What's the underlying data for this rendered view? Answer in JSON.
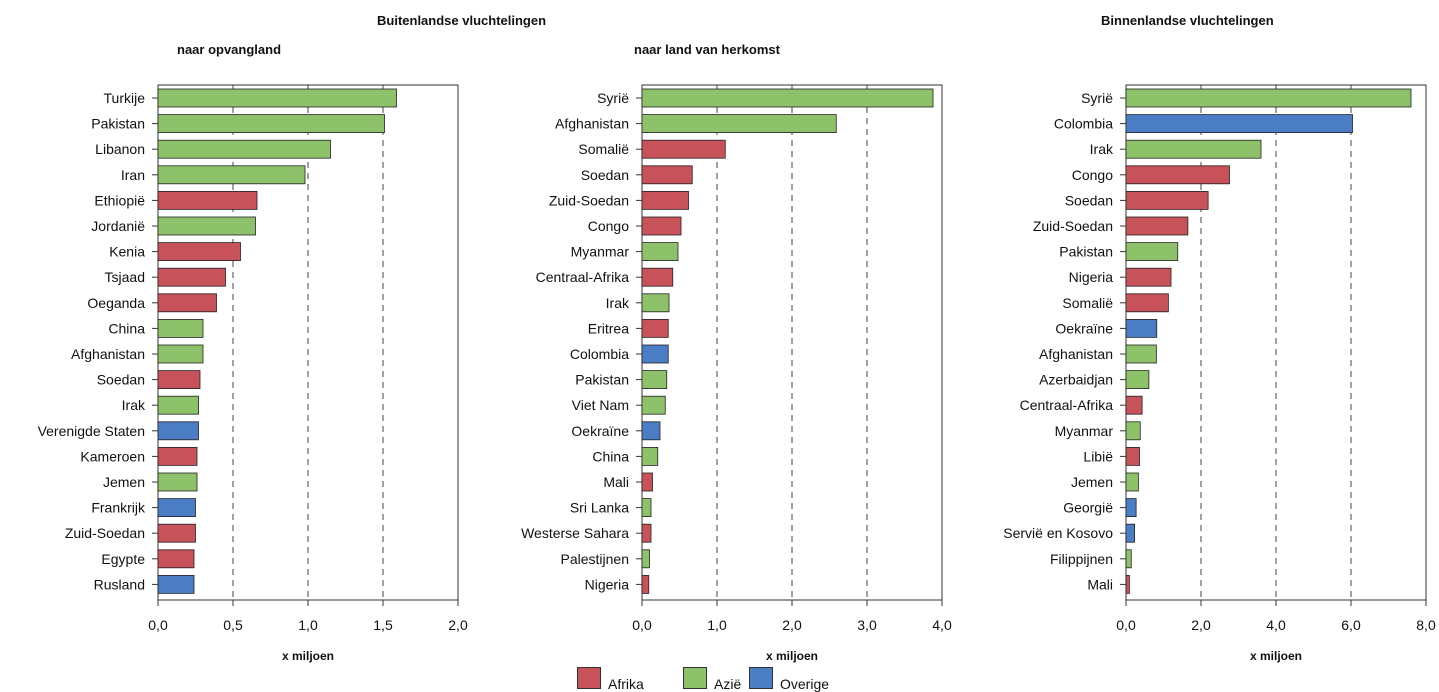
{
  "header": {
    "title_main": "Buitenlandse vluchtelingen",
    "title_right": "Binnenlandse vluchtelingen",
    "sub_left": "naar opvangland",
    "sub_middle": "naar land van herkomst"
  },
  "colors": {
    "Afrika": "#c8525a",
    "Azie": "#8dc26a",
    "Overige": "#4a7dc4"
  },
  "legend": {
    "afrika": "Afrika",
    "azie": "Azië",
    "overige": "Overige"
  },
  "chart_data": [
    {
      "type": "bar",
      "orientation": "horizontal",
      "subtitle": "naar opvangland",
      "xlabel": "x miljoen",
      "xlim": [
        0,
        2.0
      ],
      "ticks": [
        "0,0",
        "0,5",
        "1,0",
        "1,5",
        "2,0"
      ],
      "categories": [
        "Turkije",
        "Pakistan",
        "Libanon",
        "Iran",
        "Ethiopië",
        "Jordanië",
        "Kenia",
        "Tsjaad",
        "Oeganda",
        "China",
        "Afghanistan",
        "Soedan",
        "Irak",
        "Verenigde Staten",
        "Kameroen",
        "Jemen",
        "Frankrijk",
        "Zuid-Soedan",
        "Egypte",
        "Rusland"
      ],
      "values": [
        1.59,
        1.51,
        1.15,
        0.98,
        0.66,
        0.65,
        0.55,
        0.45,
        0.39,
        0.3,
        0.3,
        0.28,
        0.27,
        0.27,
        0.26,
        0.26,
        0.25,
        0.25,
        0.24,
        0.24
      ],
      "groups": [
        "Azie",
        "Azie",
        "Azie",
        "Azie",
        "Afrika",
        "Azie",
        "Afrika",
        "Afrika",
        "Afrika",
        "Azie",
        "Azie",
        "Afrika",
        "Azie",
        "Overige",
        "Afrika",
        "Azie",
        "Overige",
        "Afrika",
        "Afrika",
        "Overige"
      ]
    },
    {
      "type": "bar",
      "orientation": "horizontal",
      "subtitle": "naar land van herkomst",
      "xlabel": "x miljoen",
      "xlim": [
        0,
        4.0
      ],
      "ticks": [
        "0,0",
        "1,0",
        "2,0",
        "3,0",
        "4,0"
      ],
      "categories": [
        "Syrië",
        "Afghanistan",
        "Somalië",
        "Soedan",
        "Zuid-Soedan",
        "Congo",
        "Myanmar",
        "Centraal-Afrika",
        "Irak",
        "Eritrea",
        "Colombia",
        "Pakistan",
        "Viet Nam",
        "Oekraïne",
        "China",
        "Mali",
        "Sri Lanka",
        "Westerse Sahara",
        "Palestijnen",
        "Nigeria"
      ],
      "values": [
        3.88,
        2.59,
        1.11,
        0.67,
        0.62,
        0.52,
        0.48,
        0.41,
        0.36,
        0.35,
        0.35,
        0.33,
        0.31,
        0.24,
        0.21,
        0.14,
        0.12,
        0.12,
        0.1,
        0.09
      ],
      "groups": [
        "Azie",
        "Azie",
        "Afrika",
        "Afrika",
        "Afrika",
        "Afrika",
        "Azie",
        "Afrika",
        "Azie",
        "Afrika",
        "Overige",
        "Azie",
        "Azie",
        "Overige",
        "Azie",
        "Afrika",
        "Azie",
        "Afrika",
        "Azie",
        "Afrika"
      ]
    },
    {
      "type": "bar",
      "orientation": "horizontal",
      "title": "Binnenlandse vluchtelingen",
      "xlabel": "x miljoen",
      "xlim": [
        0,
        8.0
      ],
      "ticks": [
        "0,0",
        "2,0",
        "4,0",
        "6,0",
        "8,0"
      ],
      "categories": [
        "Syrië",
        "Colombia",
        "Irak",
        "Congo",
        "Soedan",
        "Zuid-Soedan",
        "Pakistan",
        "Nigeria",
        "Somalië",
        "Oekraïne",
        "Afghanistan",
        "Azerbaidjan",
        "Centraal-Afrika",
        "Myanmar",
        "Libië",
        "Jemen",
        "Georgië",
        "Servië en Kosovo",
        "Filippijnen",
        "Mali"
      ],
      "values": [
        7.6,
        6.04,
        3.6,
        2.76,
        2.19,
        1.65,
        1.38,
        1.2,
        1.13,
        0.82,
        0.81,
        0.61,
        0.43,
        0.38,
        0.36,
        0.33,
        0.27,
        0.23,
        0.14,
        0.09
      ],
      "groups": [
        "Azie",
        "Overige",
        "Azie",
        "Afrika",
        "Afrika",
        "Afrika",
        "Azie",
        "Afrika",
        "Afrika",
        "Overige",
        "Azie",
        "Azie",
        "Afrika",
        "Azie",
        "Afrika",
        "Azie",
        "Overige",
        "Overige",
        "Azie",
        "Afrika"
      ]
    }
  ]
}
